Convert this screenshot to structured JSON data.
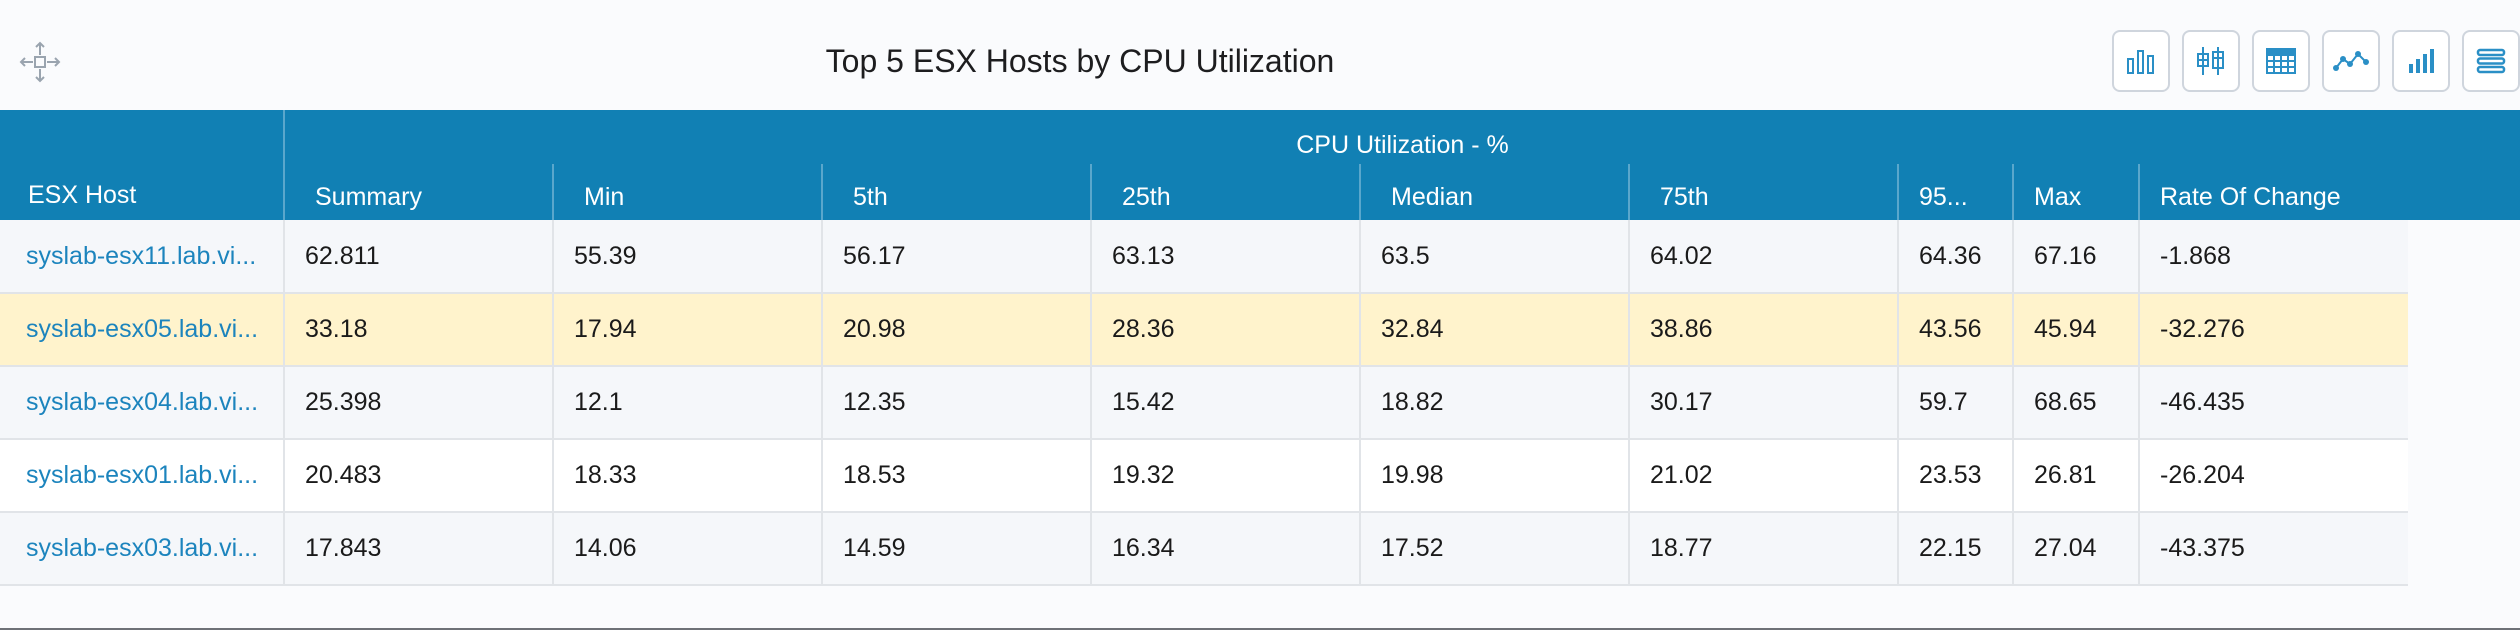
{
  "widget": {
    "title": "Top 5 ESX Hosts by CPU Utilization"
  },
  "toolbar": [
    {
      "name": "bar-chart-button",
      "icon": "bar-chart-icon"
    },
    {
      "name": "box-plot-button",
      "icon": "box-plot-icon"
    },
    {
      "name": "table-view-button",
      "icon": "table-grid-icon"
    },
    {
      "name": "line-chart-button",
      "icon": "line-chart-icon"
    },
    {
      "name": "column-chart-button",
      "icon": "ascending-bars-icon"
    },
    {
      "name": "menu-button",
      "icon": "hamburger-menu-icon"
    }
  ],
  "table": {
    "host_header": "ESX Host",
    "group_header": "CPU Utilization - %",
    "columns": [
      "Summary",
      "Min",
      "5th",
      "25th",
      "Median",
      "75th",
      "95...",
      "Max",
      "Rate Of Change"
    ],
    "rows": [
      {
        "host": "syslab-esx11.lab.vi...",
        "values": [
          "62.811",
          "55.39",
          "56.17",
          "63.13",
          "63.5",
          "64.02",
          "64.36",
          "67.16",
          "-1.868"
        ]
      },
      {
        "host": "syslab-esx05.lab.vi...",
        "values": [
          "33.18",
          "17.94",
          "20.98",
          "28.36",
          "32.84",
          "38.86",
          "43.56",
          "45.94",
          "-32.276"
        ],
        "selected": true
      },
      {
        "host": "syslab-esx04.lab.vi...",
        "values": [
          "25.398",
          "12.1",
          "12.35",
          "15.42",
          "18.82",
          "30.17",
          "59.7",
          "68.65",
          "-46.435"
        ]
      },
      {
        "host": "syslab-esx01.lab.vi...",
        "values": [
          "20.483",
          "18.33",
          "18.53",
          "19.32",
          "19.98",
          "21.02",
          "23.53",
          "26.81",
          "-26.204"
        ]
      },
      {
        "host": "syslab-esx03.lab.vi...",
        "values": [
          "17.843",
          "14.06",
          "14.59",
          "16.34",
          "17.52",
          "18.77",
          "22.15",
          "27.04",
          "-43.375"
        ]
      }
    ]
  },
  "colors": {
    "header_bg": "#1180b4",
    "host_link": "#1c84bd",
    "selected_row": "#fff3cc",
    "icon_accent": "#2a8fc6"
  }
}
